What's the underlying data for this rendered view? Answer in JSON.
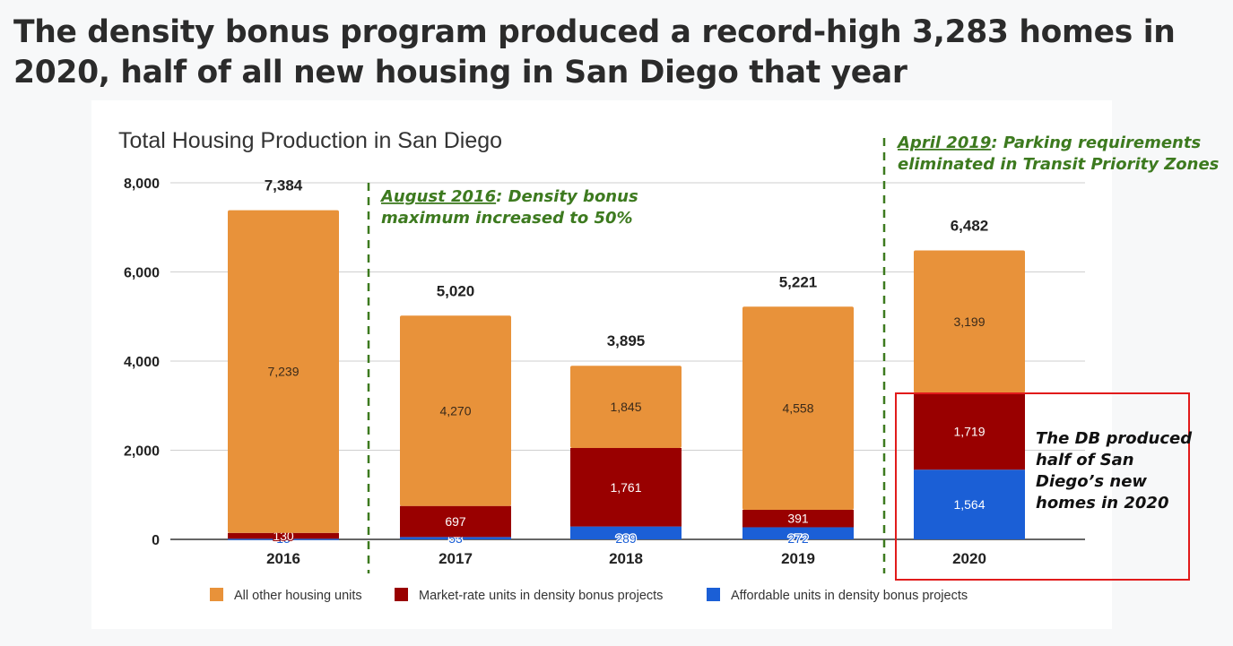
{
  "headline": "The density bonus program produced a record-high 3,283 homes in 2020, half of all new housing in San Diego that year",
  "colors": {
    "other": "#e8923a",
    "market": "#990000",
    "affordable": "#1b5fd6",
    "annotation": "#3d7a1f",
    "callout_box": "#e11b1b"
  },
  "chart_data": {
    "type": "bar",
    "stacked": true,
    "title": "Total Housing Production in San Diego",
    "categories": [
      "2016",
      "2017",
      "2018",
      "2019",
      "2020"
    ],
    "series": [
      {
        "name": "Affordable units in density bonus projects",
        "key": "affordable",
        "values": [
          15,
          53,
          289,
          272,
          1564
        ],
        "labels": [
          "15",
          "53",
          "289",
          "272",
          "1,564"
        ]
      },
      {
        "name": "Market-rate units in density bonus projects",
        "key": "market",
        "values": [
          130,
          697,
          1761,
          391,
          1719
        ],
        "labels": [
          "130",
          "697",
          "1,761",
          "391",
          "1,719"
        ]
      },
      {
        "name": "All other housing units",
        "key": "other",
        "values": [
          7239,
          4270,
          1845,
          4558,
          3199
        ],
        "labels": [
          "7,239",
          "4,270",
          "1,845",
          "4,558",
          "3,199"
        ]
      }
    ],
    "totals": [
      "7,384",
      "5,020",
      "3,895",
      "5,221",
      "6,482"
    ],
    "total_values": [
      7384,
      5020,
      3895,
      5221,
      6482
    ],
    "ylim": [
      0,
      8000
    ],
    "yticks": [
      0,
      2000,
      4000,
      6000,
      8000
    ],
    "ytick_labels": [
      "0",
      "2,000",
      "4,000",
      "6,000",
      "8,000"
    ],
    "grid": true,
    "legend_position": "bottom",
    "legend_order": [
      "other",
      "market",
      "affordable"
    ],
    "annotations": [
      {
        "after_category": "2016",
        "date": "August 2016",
        "lines": [
          ": Density bonus",
          "maximum increased to 50%"
        ]
      },
      {
        "after_category": "2019",
        "date": "April 2019",
        "lines": [
          ": Parking requirements",
          "eliminated in Transit Priority Zones"
        ]
      }
    ],
    "callout": {
      "category": "2020",
      "lines": [
        "The DB produced",
        "half of San",
        "Diego’s new",
        "homes in 2020"
      ]
    }
  }
}
